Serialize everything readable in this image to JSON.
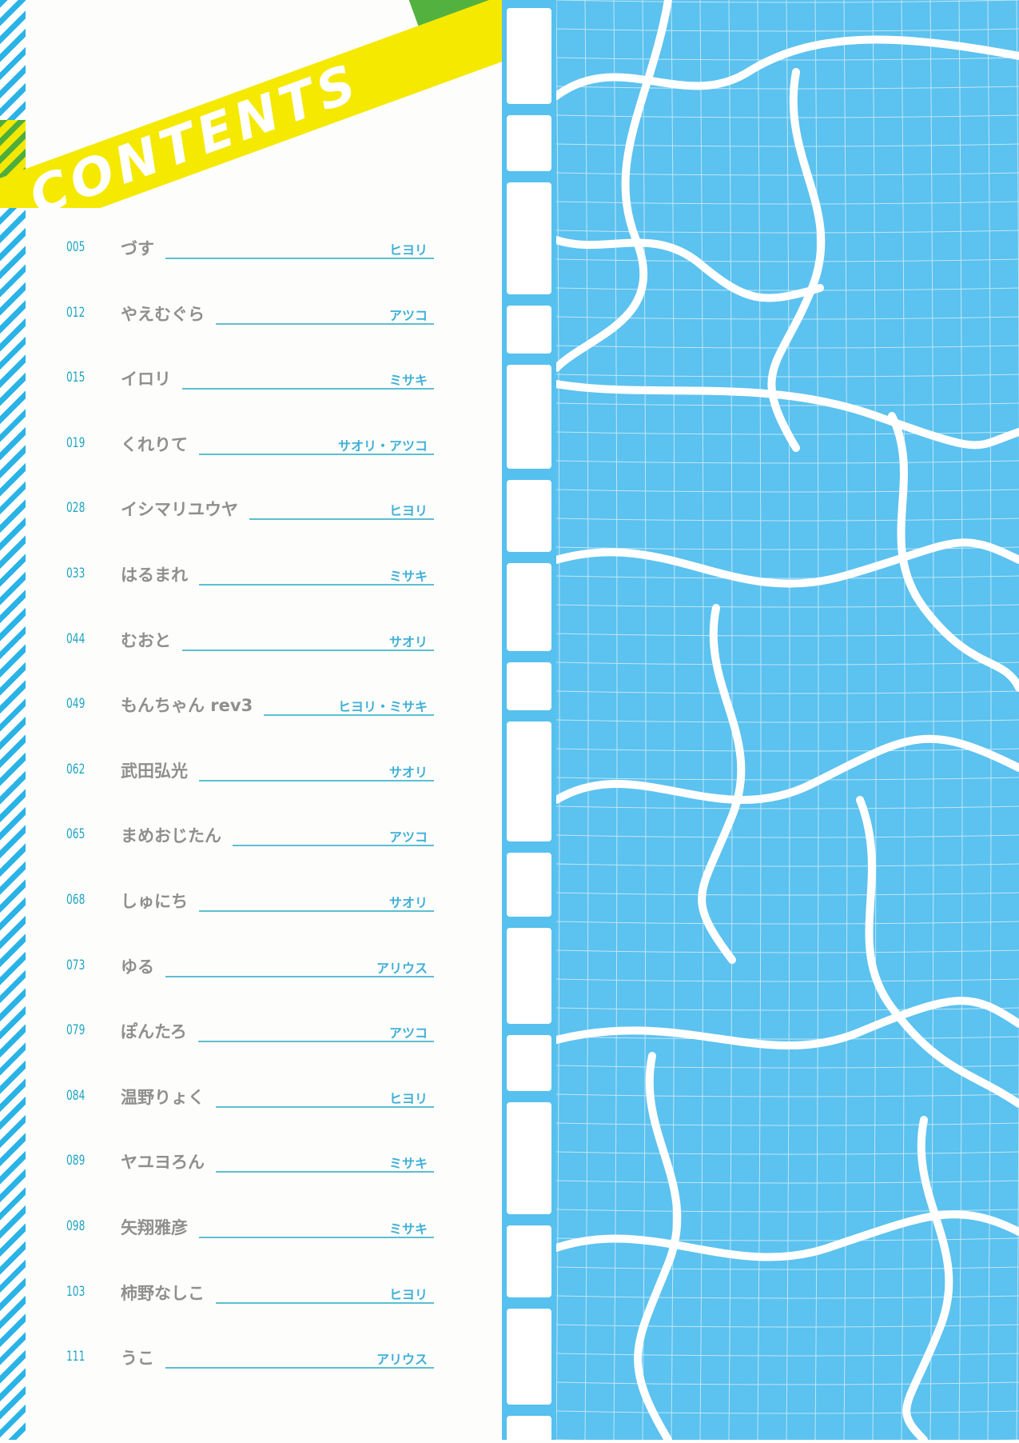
{
  "header": {
    "title": "CONTENTS"
  },
  "colors": {
    "accent_blue": "#2ab3e6",
    "water_blue": "#5cc2ef",
    "banner_yellow": "#f5e900",
    "banner_green": "#53b23f",
    "title_gray": "#8f8f8f"
  },
  "contents": [
    {
      "page": "005",
      "title": "づす",
      "author": "ヒヨリ"
    },
    {
      "page": "012",
      "title": "やえむぐら",
      "author": "アツコ"
    },
    {
      "page": "015",
      "title": "イロリ",
      "author": "ミサキ"
    },
    {
      "page": "019",
      "title": "くれりて",
      "author": "サオリ・アツコ"
    },
    {
      "page": "028",
      "title": "イシマリユウヤ",
      "author": "ヒヨリ"
    },
    {
      "page": "033",
      "title": "はるまれ",
      "author": "ミサキ"
    },
    {
      "page": "044",
      "title": "むおと",
      "author": "サオリ"
    },
    {
      "page": "049",
      "title": "もんちゃん rev3",
      "author": "ヒヨリ・ミサキ"
    },
    {
      "page": "062",
      "title": "武田弘光",
      "author": "サオリ"
    },
    {
      "page": "065",
      "title": "まめおじたん",
      "author": "アツコ"
    },
    {
      "page": "068",
      "title": "しゅにち",
      "author": "サオリ"
    },
    {
      "page": "073",
      "title": "ゆる",
      "author": "アリウス"
    },
    {
      "page": "079",
      "title": "ぽんたろ",
      "author": "アツコ"
    },
    {
      "page": "084",
      "title": "温野りょく",
      "author": "ヒヨリ"
    },
    {
      "page": "089",
      "title": "ヤユヨろん",
      "author": "ミサキ"
    },
    {
      "page": "098",
      "title": "矢翔雅彦",
      "author": "ミサキ"
    },
    {
      "page": "103",
      "title": "柿野なしこ",
      "author": "ヒヨリ"
    },
    {
      "page": "111",
      "title": "うこ",
      "author": "アリウス"
    }
  ]
}
